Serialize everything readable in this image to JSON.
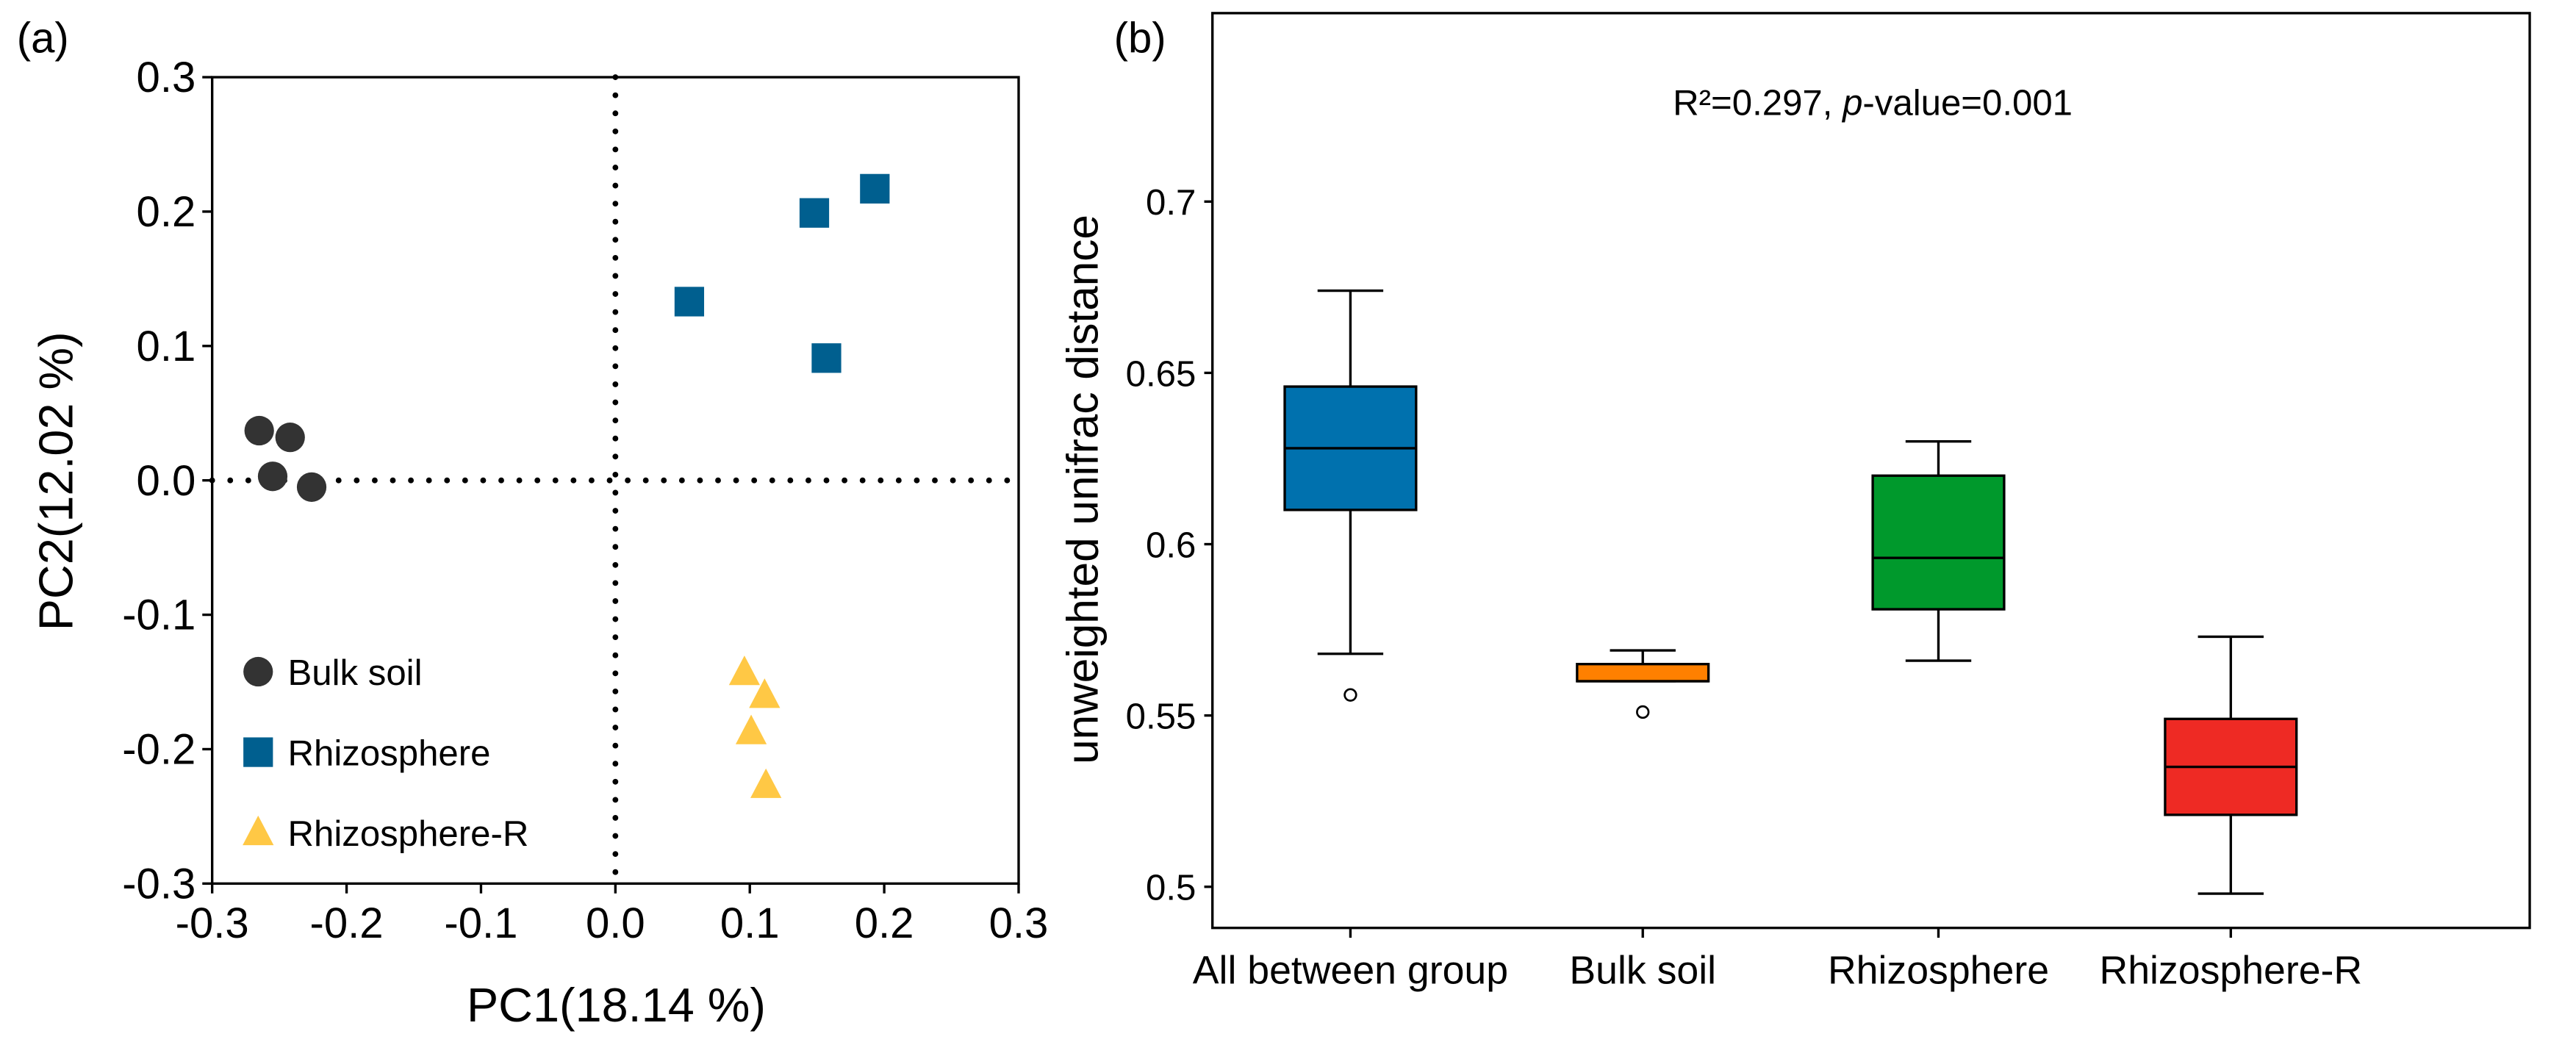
{
  "chart_data": [
    {
      "panel_label": "(a)",
      "type": "scatter",
      "xlabel": "PC1(18.14 %)",
      "ylabel": "PC2(12.02 %)",
      "xlim": [
        -0.3,
        0.3
      ],
      "ylim": [
        -0.3,
        0.3
      ],
      "xticks": [
        "-0.3",
        "-0.2",
        "-0.1",
        "0.0",
        "0.1",
        "0.2",
        "0.3"
      ],
      "yticks": [
        "-0.3",
        "-0.2",
        "-0.1",
        "0.0",
        "0.1",
        "0.2",
        "0.3"
      ],
      "legend_position": "bottom-left",
      "series": [
        {
          "name": "Bulk soil",
          "marker": "circle",
          "color": "#333333",
          "points": [
            [
              -0.265,
              0.037
            ],
            [
              -0.242,
              0.032
            ],
            [
              -0.255,
              0.003
            ],
            [
              -0.226,
              -0.005
            ]
          ]
        },
        {
          "name": "Rhizosphere",
          "marker": "square",
          "color": "#005F8F",
          "points": [
            [
              0.055,
              0.133
            ],
            [
              0.148,
              0.199
            ],
            [
              0.193,
              0.217
            ],
            [
              0.157,
              0.091
            ]
          ]
        },
        {
          "name": "Rhizosphere-R",
          "marker": "triangle",
          "color": "#FFC845",
          "points": [
            [
              0.096,
              -0.143
            ],
            [
              0.111,
              -0.16
            ],
            [
              0.101,
              -0.187
            ],
            [
              0.112,
              -0.227
            ]
          ]
        }
      ]
    },
    {
      "panel_label": "(b)",
      "type": "box",
      "annotation": {
        "r2": "R²=0.297, ",
        "p_italic": "p",
        "p_rest": "-value=0.001"
      },
      "ylabel": "unweighted unifrac distance",
      "ylim": [
        0.488,
        0.755
      ],
      "yticks": [
        "0.5",
        "0.55",
        "0.6",
        "0.65",
        "0.7"
      ],
      "categories": [
        "All between group",
        "Bulk soil",
        "Rhizosphere",
        "Rhizosphere-R"
      ],
      "boxes": [
        {
          "color": "#0071AE",
          "whisker_low": 0.568,
          "q1": 0.61,
          "median": 0.628,
          "q3": 0.646,
          "whisker_high": 0.674,
          "outliers": [
            0.556
          ]
        },
        {
          "color": "#FF8000",
          "whisker_low": 0.56,
          "q1": 0.56,
          "median": 0.56,
          "q3": 0.565,
          "whisker_high": 0.569,
          "outliers": [
            0.551
          ]
        },
        {
          "color": "#00992C",
          "whisker_low": 0.566,
          "q1": 0.581,
          "median": 0.596,
          "q3": 0.62,
          "whisker_high": 0.63,
          "outliers": []
        },
        {
          "color": "#EE2A24",
          "whisker_low": 0.498,
          "q1": 0.521,
          "median": 0.535,
          "q3": 0.549,
          "whisker_high": 0.573,
          "outliers": []
        }
      ]
    }
  ]
}
